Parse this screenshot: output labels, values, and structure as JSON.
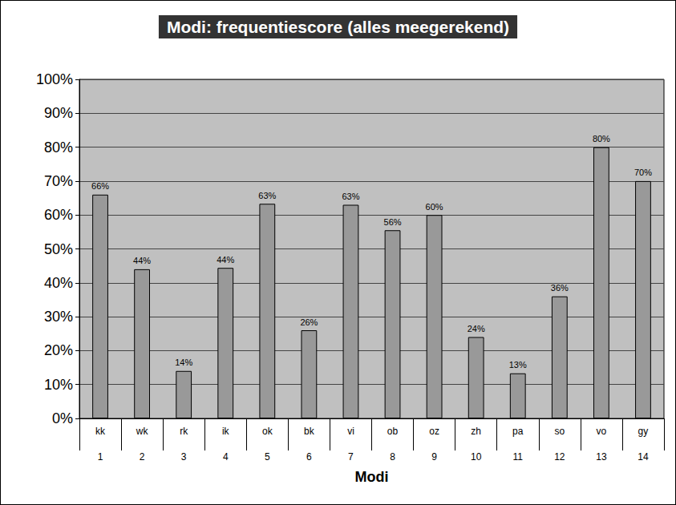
{
  "chart_data": {
    "type": "bar",
    "title": "Modi: frequentiescore (alles meegerekend)",
    "x_label": "Modi",
    "categories": [
      "kk",
      "wk",
      "rk",
      "ik",
      "ok",
      "bk",
      "vi",
      "ob",
      "oz",
      "zh",
      "pa",
      "so",
      "vo",
      "gy"
    ],
    "category_numbers": [
      1,
      2,
      3,
      4,
      5,
      6,
      7,
      8,
      9,
      10,
      11,
      12,
      13,
      14
    ],
    "values": [
      66,
      44,
      14,
      44.4,
      63.3,
      26,
      63,
      55.5,
      60,
      24,
      13.3,
      36,
      80,
      70
    ],
    "value_labels": [
      "66%",
      "44%",
      "14%",
      "44%",
      "63%",
      "26%",
      "63%",
      "56%",
      "60%",
      "24%",
      "13%",
      "36%",
      "80%",
      "70%"
    ],
    "color": "#999999",
    "data_labels": true,
    "grid": true,
    "ylim": [
      0,
      100
    ],
    "yticks": [
      {
        "value": 0,
        "label": "0%"
      },
      {
        "value": 10,
        "label": "10%"
      },
      {
        "value": 20,
        "label": "20%"
      },
      {
        "value": 30,
        "label": "30%"
      },
      {
        "value": 40,
        "label": "40%"
      },
      {
        "value": 50,
        "label": "50%"
      },
      {
        "value": 60,
        "label": "60%"
      },
      {
        "value": 70,
        "label": "70%"
      },
      {
        "value": 80,
        "label": "80%"
      },
      {
        "value": 90,
        "label": "90%"
      },
      {
        "value": 100,
        "label": "100%"
      }
    ]
  }
}
